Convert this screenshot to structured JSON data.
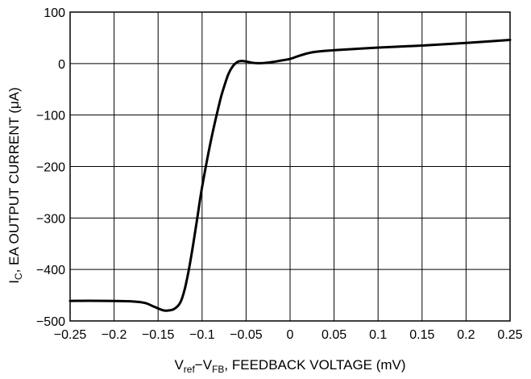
{
  "chart_data": {
    "type": "line",
    "xlabel": {
      "main": "V",
      "sub1": "ref",
      "dash": "−V",
      "sub2": "FB",
      "rest": ", FEEDBACK VOLTAGE (mV)"
    },
    "ylabel": {
      "main": "I",
      "sub": "C",
      "rest": ", EA OUTPUT CURRENT (μA)"
    },
    "xlim": [
      -0.25,
      0.25
    ],
    "ylim": [
      -500,
      100
    ],
    "x_ticks": [
      -0.25,
      -0.2,
      -0.15,
      -0.1,
      -0.05,
      0,
      0.05,
      0.1,
      0.15,
      0.2,
      0.25
    ],
    "x_tick_labels": [
      "−0.25",
      "−0.2",
      "−0.15",
      "−0.1",
      "−0.05",
      "0",
      "0.05",
      "0.1",
      "0.15",
      "0.2",
      "0.25"
    ],
    "y_ticks": [
      100,
      0,
      -100,
      -200,
      -300,
      -400,
      -500
    ],
    "y_tick_labels": [
      "100",
      "0",
      "−100",
      "−200",
      "−300",
      "−400",
      "−500"
    ],
    "grid": true,
    "series": [
      {
        "color": "#000000",
        "x": [
          -0.25,
          -0.21,
          -0.18,
          -0.165,
          -0.155,
          -0.145,
          -0.14,
          -0.132,
          -0.125,
          -0.12,
          -0.115,
          -0.11,
          -0.105,
          -0.1,
          -0.09,
          -0.08,
          -0.075,
          -0.07,
          -0.065,
          -0.06,
          -0.055,
          -0.05,
          -0.04,
          -0.03,
          -0.02,
          -0.01,
          0,
          0.01,
          0.02,
          0.03,
          0.05,
          0.1,
          0.15,
          0.2,
          0.25
        ],
        "y": [
          -461,
          -461,
          -462,
          -465,
          -472,
          -479,
          -480,
          -477,
          -465,
          -440,
          -400,
          -350,
          -295,
          -240,
          -150,
          -75,
          -45,
          -20,
          -5,
          3,
          5,
          4,
          1,
          1,
          3,
          6,
          9,
          15,
          20,
          23,
          26,
          31,
          35,
          40,
          46
        ]
      }
    ]
  }
}
